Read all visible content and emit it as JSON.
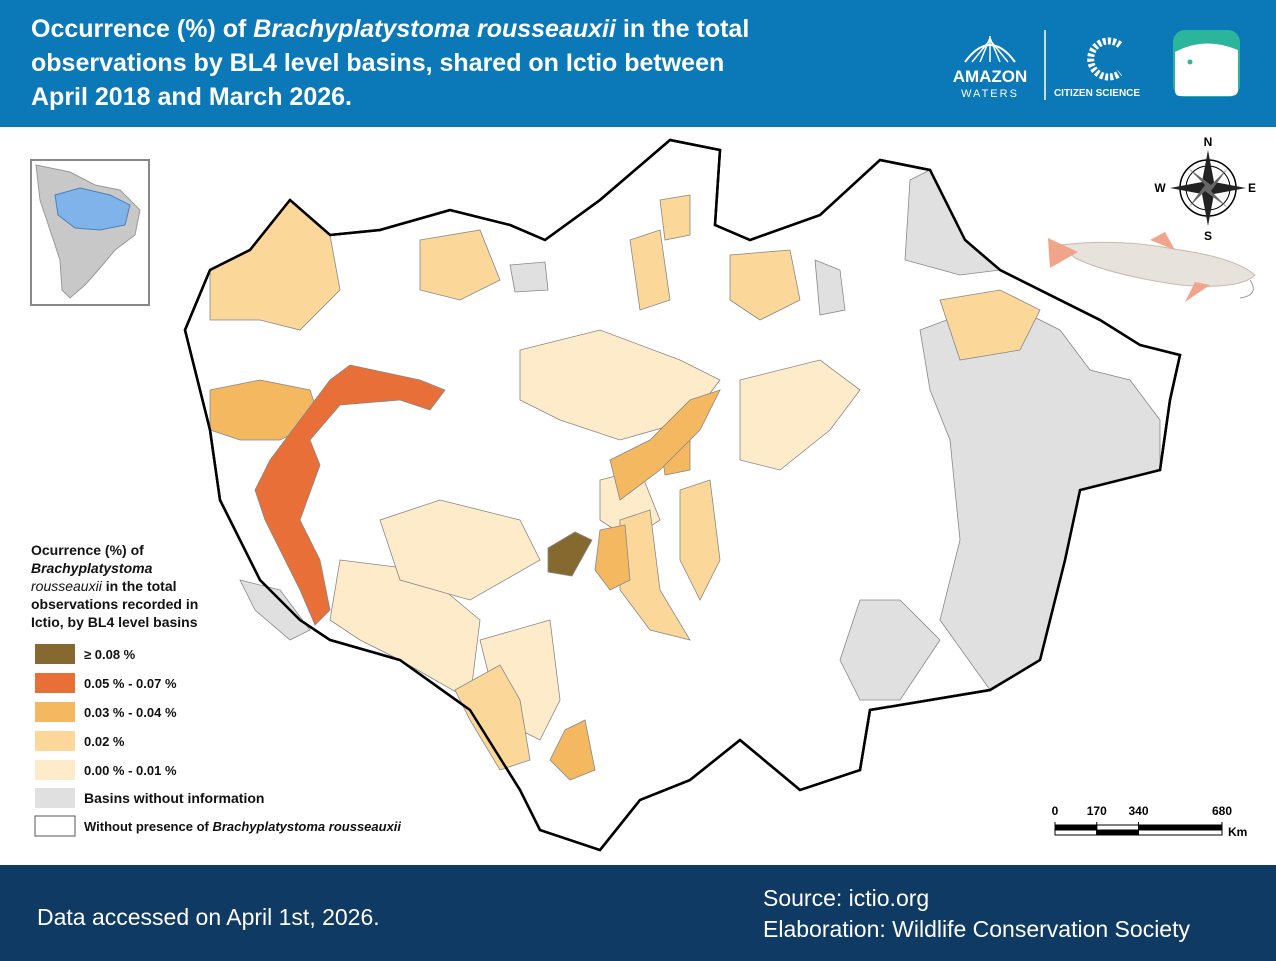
{
  "header": {
    "title_parts": [
      "Occurrence (%) of ",
      "Brachyplatystoma rousseauxii",
      " in the total",
      "observations by BL4 level basins, shared on Ictio between",
      "April 2018 and March 2026."
    ]
  },
  "logos": {
    "amazon": "AMAZON",
    "waters": "WATERS",
    "citizen_science": "CITIZEN SCIENCE"
  },
  "compass": {
    "n": "N",
    "w": "W",
    "e": "E",
    "s": "S"
  },
  "legend": {
    "title_parts": [
      "Ocurrence (%) of",
      "Brachyplatystoma",
      "rousseauxii",
      " in the total",
      "observations recorded in",
      "Ictio, by BL4 level basins"
    ],
    "items": [
      {
        "label": "≥ 0.08 %",
        "color": "#86692f"
      },
      {
        "label": "0.05 % - 0.07 %",
        "color": "#e86f37"
      },
      {
        "label": "0.03 % - 0.04 %",
        "color": "#f4b860"
      },
      {
        "label": "0.02 %",
        "color": "#fbd89a"
      },
      {
        "label": "0.00 % - 0.01 %",
        "color": "#fdebc9"
      },
      {
        "label": "Basins without information",
        "color": "#e0e0e0"
      },
      {
        "label_parts": [
          "Without presence of ",
          "Brachyplatystoma rousseauxii"
        ],
        "color": "#ffffff"
      }
    ]
  },
  "scale_bar": {
    "ticks": [
      0,
      170,
      340,
      680
    ],
    "unit": "Km"
  },
  "footer": {
    "accessed": "Data accessed on April 1st, 2026.",
    "source": "Source: ictio.org",
    "elaboration": "Elaboration: Wildlife Conservation Society"
  }
}
